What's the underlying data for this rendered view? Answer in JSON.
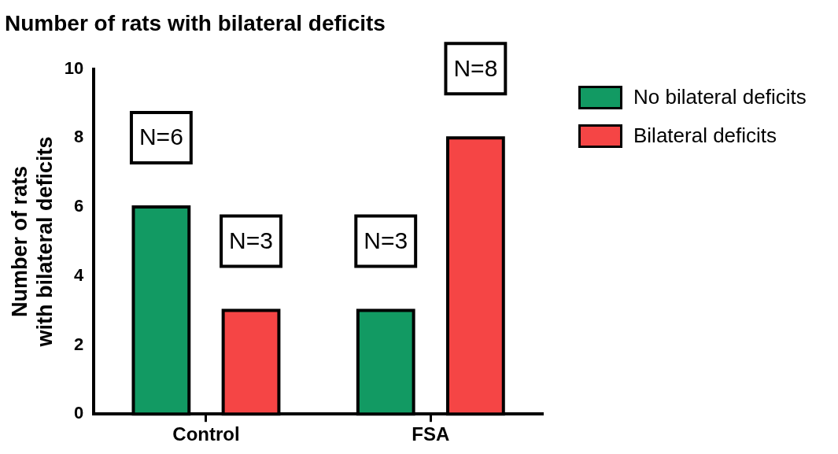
{
  "chart_data": {
    "type": "bar",
    "title": "Number of rats with bilateral deficits",
    "ylabel": "Number of rats with bilateral deficits",
    "categories": [
      "Control",
      "FSA"
    ],
    "series": [
      {
        "name": "No bilateral deficits",
        "color": "#129a63",
        "values": [
          6,
          3
        ],
        "value_labels": [
          "N=6",
          "N=3"
        ]
      },
      {
        "name": "Bilateral deficits",
        "color": "#f54545",
        "values": [
          3,
          8
        ],
        "value_labels": [
          "N=3",
          "N=8"
        ]
      }
    ],
    "ylim": [
      0,
      10
    ],
    "yticks": [
      0,
      2,
      4,
      6,
      8,
      10
    ],
    "grid": false,
    "legend": "right"
  }
}
